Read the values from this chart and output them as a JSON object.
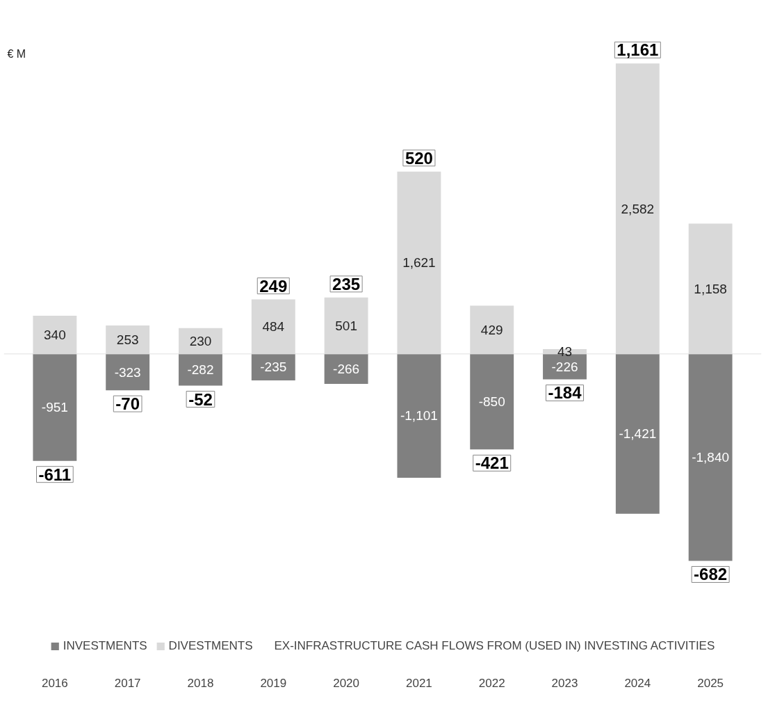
{
  "chart_data": {
    "type": "bar",
    "stacked": true,
    "ylabel": "€ M",
    "categories": [
      "2016",
      "2017",
      "2018",
      "2019",
      "2020",
      "2021",
      "2022",
      "2023",
      "2024",
      "2025"
    ],
    "series": [
      {
        "name": "INVESTMENTS",
        "color": "#808080",
        "values": [
          -951,
          -323,
          -282,
          -235,
          -266,
          -1101,
          -850,
          -226,
          -1421,
          -1840
        ],
        "value_labels": [
          "-951",
          "-323",
          "-282",
          "-235",
          "-266",
          "-1,101",
          "-850",
          "-226",
          "-1,421",
          "-1,840"
        ]
      },
      {
        "name": "DIVESTMENTS",
        "color": "#d9d9d9",
        "values": [
          340,
          253,
          230,
          484,
          501,
          1621,
          429,
          43,
          2582,
          1158
        ],
        "value_labels": [
          "340",
          "253",
          "230",
          "484",
          "501",
          "1,621",
          "429",
          "43",
          "2,582",
          "1,158"
        ]
      }
    ],
    "totals": [
      "-611",
      "-70",
      "-52",
      "249",
      "235",
      "520",
      "-421",
      "-184",
      "1,161",
      "-682"
    ],
    "annotations": [
      "EX-INFRASTRUCTURE CASH FLOWS FROM (USED IN) INVESTING ACTIVITIES"
    ],
    "legend": "bottom",
    "grid": false
  }
}
